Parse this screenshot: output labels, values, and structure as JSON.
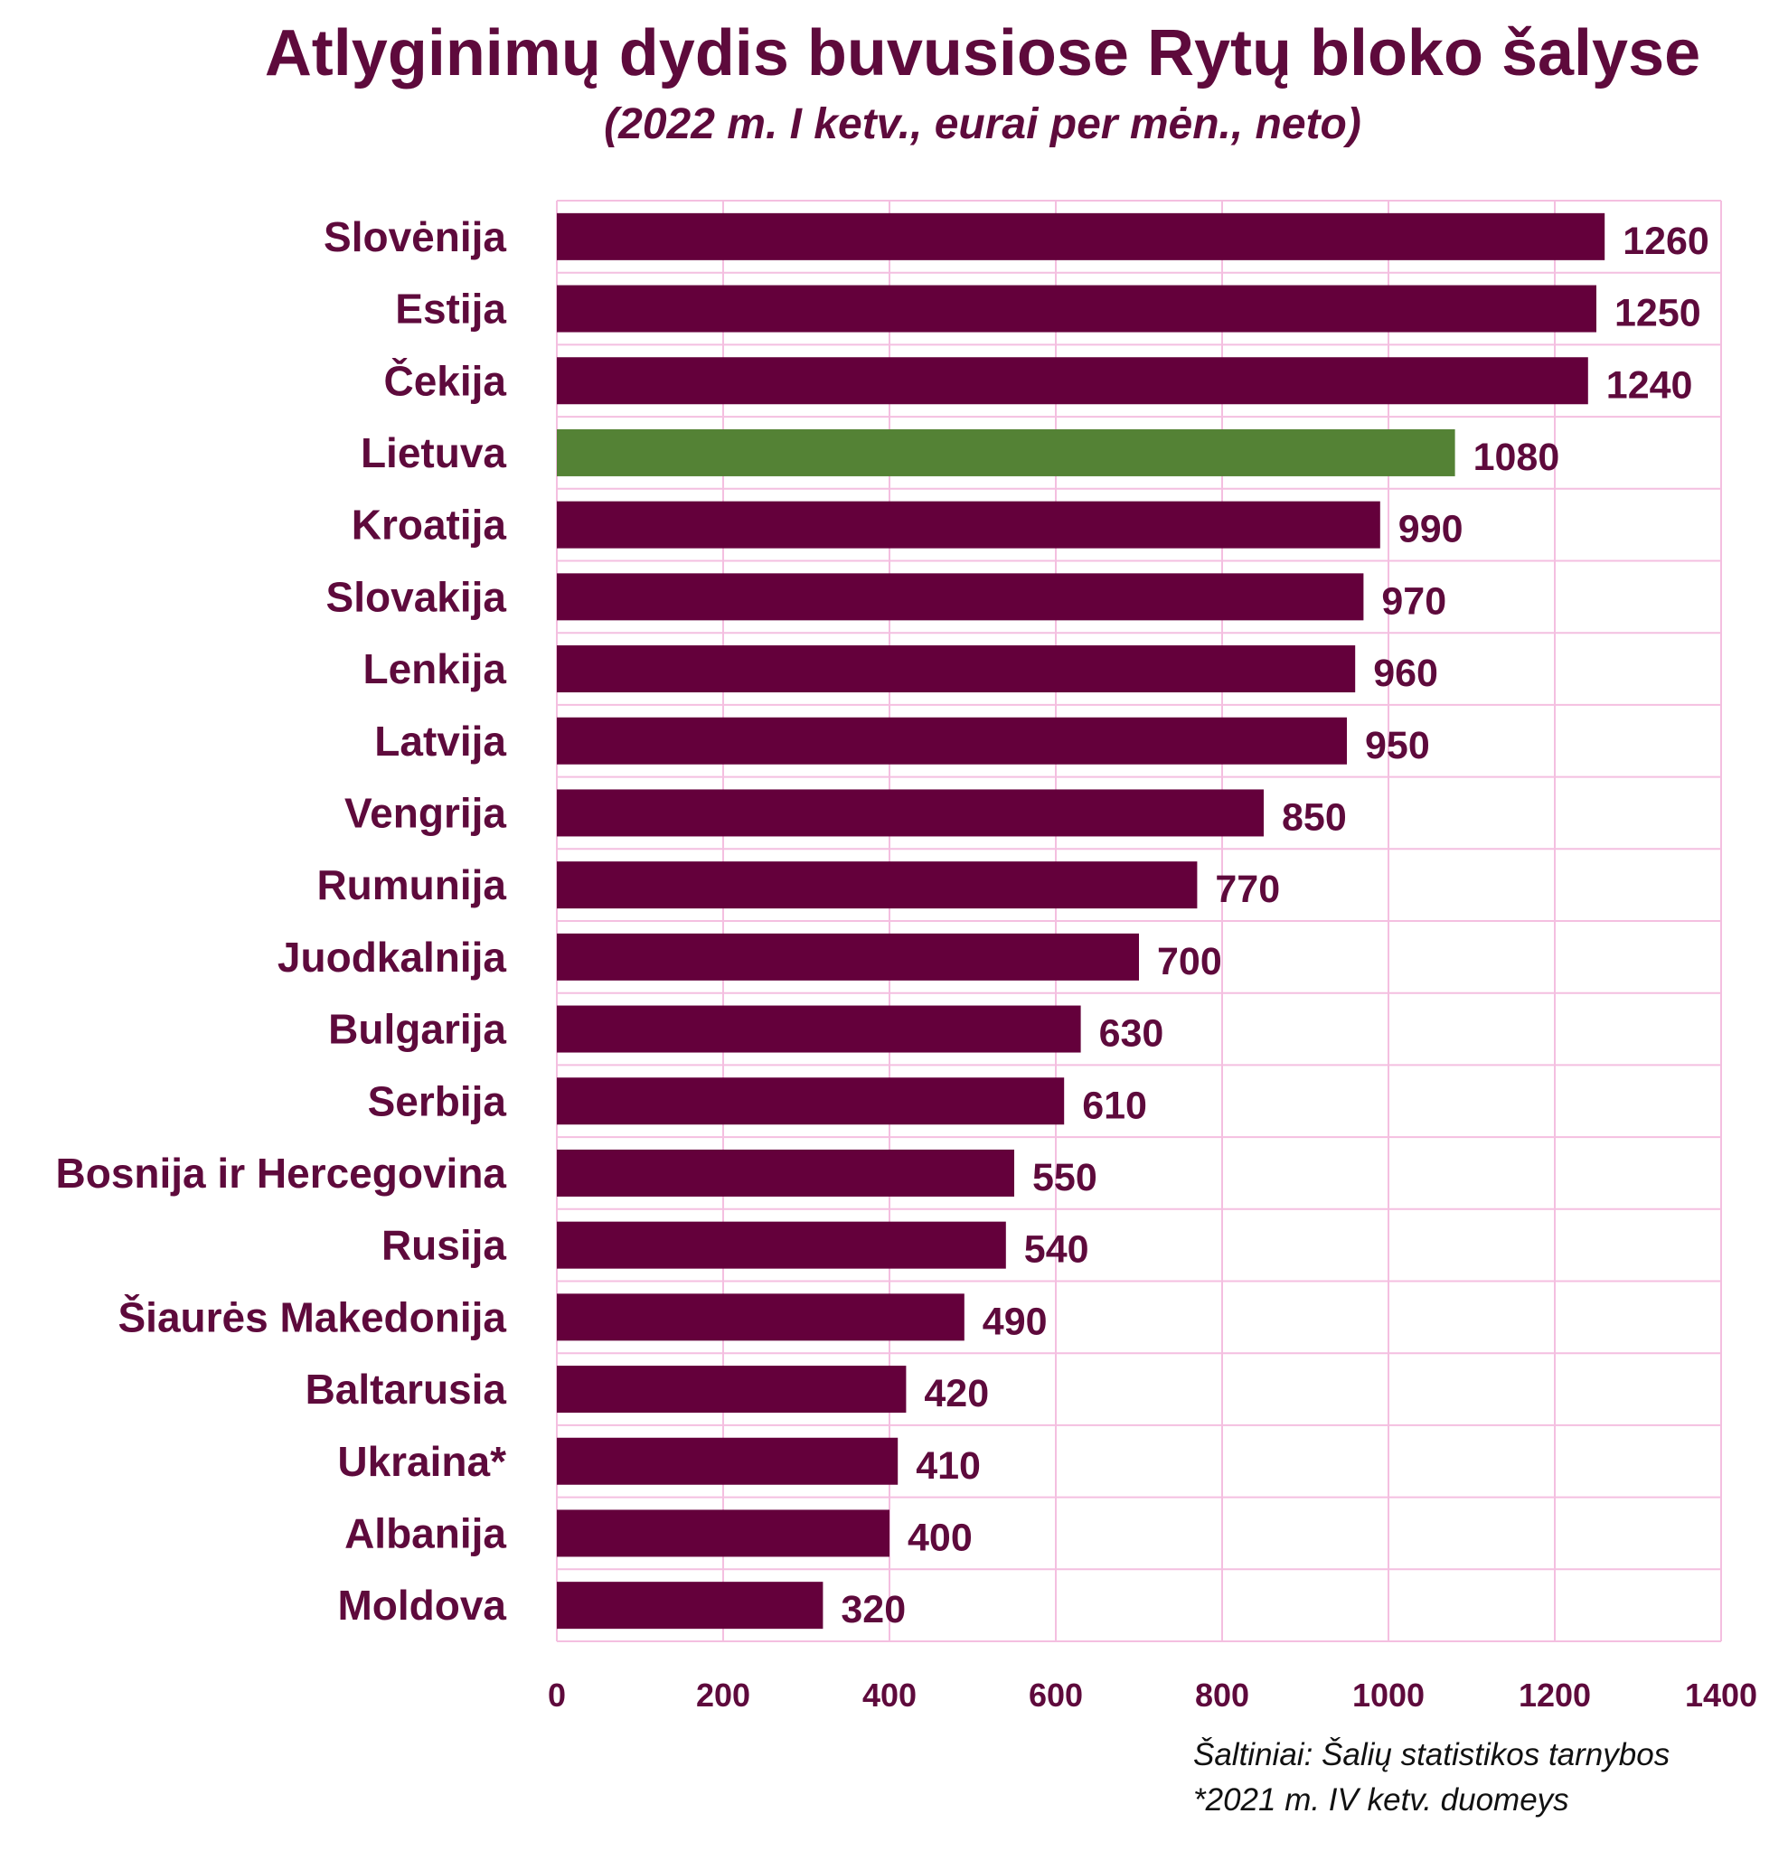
{
  "chart_data": {
    "type": "bar",
    "orientation": "horizontal",
    "title": "Atlyginimų dydis buvusiose Rytų bloko šalyse",
    "subtitle": "(2022 m. I ketv., eurai per mėn., neto)",
    "categories": [
      "Slovėnija",
      "Estija",
      "Čekija",
      "Lietuva",
      "Kroatija",
      "Slovakija",
      "Lenkija",
      "Latvija",
      "Vengrija",
      "Rumunija",
      "Juodkalnija",
      "Bulgarija",
      "Serbija",
      "Bosnija ir Hercegovina",
      "Rusija",
      "Šiaurės Makedonija",
      "Baltarusia",
      "Ukraina*",
      "Albanija",
      "Moldova"
    ],
    "values": [
      1260,
      1250,
      1240,
      1080,
      990,
      970,
      960,
      950,
      850,
      770,
      700,
      630,
      610,
      550,
      540,
      490,
      420,
      410,
      400,
      320
    ],
    "highlight_category": "Lietuva",
    "colors": {
      "bar": "#64003b",
      "highlight": "#548235",
      "grid": "#f4bfe0",
      "text": "#5e0a3c"
    },
    "xlim": [
      0,
      1400
    ],
    "xticks": [
      0,
      200,
      400,
      600,
      800,
      1000,
      1200,
      1400
    ],
    "grid": true,
    "data_labels": true
  },
  "notes": {
    "source": "Šaltiniai: Šalių statistikos tarnybos",
    "footnote": "*2021 m. IV ketv. duomeys"
  }
}
